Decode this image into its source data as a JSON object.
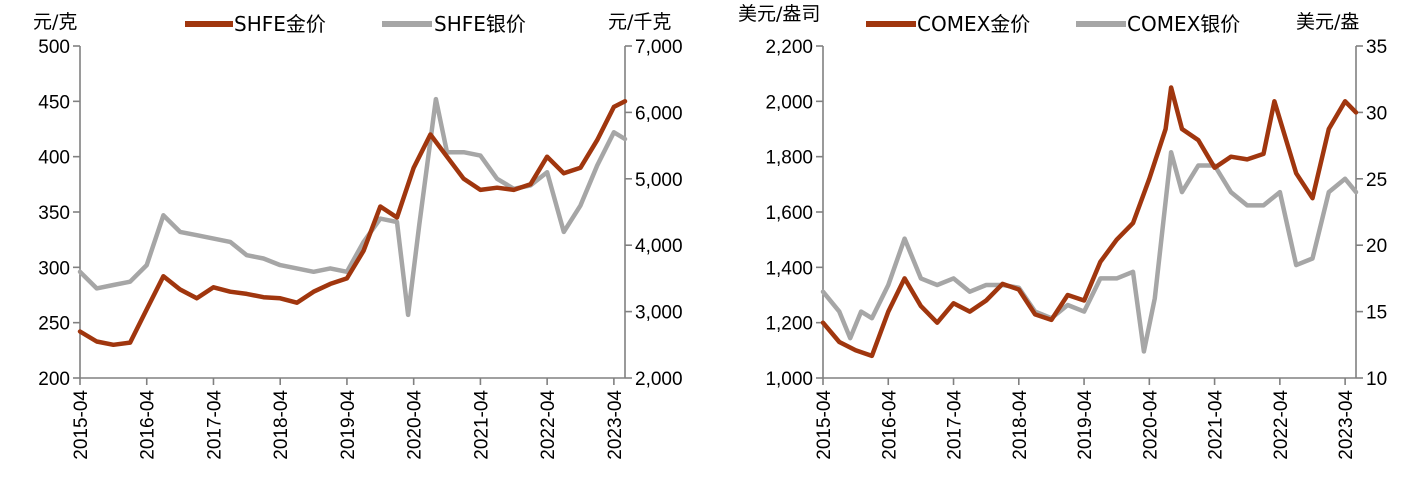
{
  "chart_data": [
    {
      "type": "line",
      "left_unit": "元/克",
      "right_unit": "元/千克",
      "ylim_left": [
        200,
        500
      ],
      "ylim_right": [
        2000,
        7000
      ],
      "yticks_left": [
        "200",
        "250",
        "300",
        "350",
        "400",
        "450",
        "500"
      ],
      "yticks_right": [
        "2,000",
        "3,000",
        "4,000",
        "5,000",
        "6,000",
        "7,000"
      ],
      "xticks": [
        "2015-04",
        "2016-04",
        "2017-04",
        "2018-04",
        "2019-04",
        "2020-04",
        "2021-04",
        "2022-04",
        "2023-04"
      ],
      "legend_position": "top",
      "series": [
        {
          "name": "SHFE金价",
          "axis": "left",
          "color": "#A0360E",
          "x": [
            "2015-04",
            "2015-07",
            "2015-10",
            "2016-01",
            "2016-04",
            "2016-07",
            "2016-10",
            "2017-01",
            "2017-04",
            "2017-07",
            "2017-10",
            "2018-01",
            "2018-04",
            "2018-07",
            "2018-10",
            "2019-01",
            "2019-04",
            "2019-07",
            "2019-10",
            "2020-01",
            "2020-04",
            "2020-07",
            "2020-10",
            "2021-01",
            "2021-04",
            "2021-07",
            "2021-10",
            "2022-01",
            "2022-04",
            "2022-07",
            "2022-10",
            "2023-01",
            "2023-04",
            "2023-06"
          ],
          "values": [
            242,
            233,
            230,
            232,
            262,
            292,
            280,
            272,
            282,
            278,
            276,
            273,
            272,
            268,
            278,
            285,
            290,
            315,
            355,
            345,
            390,
            420,
            400,
            380,
            370,
            372,
            370,
            375,
            400,
            385,
            390,
            415,
            445,
            450
          ]
        },
        {
          "name": "SHFE银价",
          "axis": "right",
          "color": "#A6A6A6",
          "x": [
            "2015-04",
            "2015-07",
            "2015-10",
            "2016-01",
            "2016-04",
            "2016-07",
            "2016-10",
            "2017-01",
            "2017-04",
            "2017-07",
            "2017-10",
            "2018-01",
            "2018-04",
            "2018-07",
            "2018-10",
            "2019-01",
            "2019-04",
            "2019-07",
            "2019-10",
            "2020-01",
            "2020-03",
            "2020-05",
            "2020-08",
            "2020-10",
            "2021-01",
            "2021-04",
            "2021-07",
            "2021-10",
            "2022-01",
            "2022-04",
            "2022-07",
            "2022-10",
            "2023-01",
            "2023-04",
            "2023-06"
          ],
          "values": [
            3600,
            3350,
            3400,
            3450,
            3700,
            4450,
            4200,
            4150,
            4100,
            4050,
            3850,
            3800,
            3700,
            3650,
            3600,
            3650,
            3600,
            4050,
            4400,
            4350,
            2950,
            4300,
            6200,
            5400,
            5400,
            5350,
            5000,
            4850,
            4900,
            5100,
            4200,
            4600,
            5200,
            5700,
            5600
          ]
        }
      ]
    },
    {
      "type": "line",
      "left_unit": "美元/盎司",
      "right_unit": "美元/盎",
      "ylim_left": [
        1000,
        2200
      ],
      "ylim_right": [
        10,
        35
      ],
      "yticks_left": [
        "1,000",
        "1,200",
        "1,400",
        "1,600",
        "1,800",
        "2,000",
        "2,200"
      ],
      "yticks_right": [
        "10",
        "15",
        "20",
        "25",
        "30",
        "35"
      ],
      "xticks": [
        "2015-04",
        "2016-04",
        "2017-04",
        "2018-04",
        "2019-04",
        "2020-04",
        "2021-04",
        "2022-04",
        "2023-04"
      ],
      "legend_position": "top",
      "series": [
        {
          "name": "COMEX金价",
          "axis": "left",
          "color": "#A0360E",
          "x": [
            "2015-04",
            "2015-07",
            "2015-10",
            "2016-01",
            "2016-04",
            "2016-07",
            "2016-10",
            "2017-01",
            "2017-04",
            "2017-07",
            "2017-10",
            "2018-01",
            "2018-04",
            "2018-07",
            "2018-10",
            "2019-01",
            "2019-04",
            "2019-07",
            "2019-10",
            "2020-01",
            "2020-04",
            "2020-07",
            "2020-08",
            "2020-10",
            "2021-01",
            "2021-04",
            "2021-07",
            "2021-10",
            "2022-01",
            "2022-03",
            "2022-07",
            "2022-10",
            "2023-01",
            "2023-04",
            "2023-06"
          ],
          "values": [
            1200,
            1130,
            1100,
            1080,
            1240,
            1360,
            1260,
            1200,
            1270,
            1240,
            1280,
            1340,
            1320,
            1230,
            1210,
            1300,
            1280,
            1420,
            1500,
            1560,
            1720,
            1900,
            2050,
            1900,
            1860,
            1760,
            1800,
            1790,
            1810,
            2000,
            1740,
            1650,
            1900,
            2000,
            1960
          ]
        },
        {
          "name": "COMEX银价",
          "axis": "right",
          "color": "#A6A6A6",
          "x": [
            "2015-04",
            "2015-07",
            "2015-09",
            "2015-11",
            "2016-01",
            "2016-04",
            "2016-07",
            "2016-10",
            "2017-01",
            "2017-04",
            "2017-07",
            "2017-10",
            "2018-01",
            "2018-04",
            "2018-07",
            "2018-10",
            "2019-01",
            "2019-04",
            "2019-07",
            "2019-10",
            "2020-01",
            "2020-03",
            "2020-05",
            "2020-08",
            "2020-10",
            "2021-01",
            "2021-04",
            "2021-07",
            "2021-10",
            "2022-01",
            "2022-04",
            "2022-07",
            "2022-10",
            "2023-01",
            "2023-04",
            "2023-06"
          ],
          "values": [
            16.5,
            15,
            13,
            15,
            14.5,
            17,
            20.5,
            17.5,
            17,
            17.5,
            16.5,
            17,
            17,
            16.8,
            15,
            14.5,
            15.5,
            15,
            17.5,
            17.5,
            18,
            12,
            16,
            27,
            24,
            26,
            26,
            24,
            23,
            23,
            24,
            18.5,
            19,
            24,
            25,
            24
          ]
        }
      ]
    }
  ]
}
